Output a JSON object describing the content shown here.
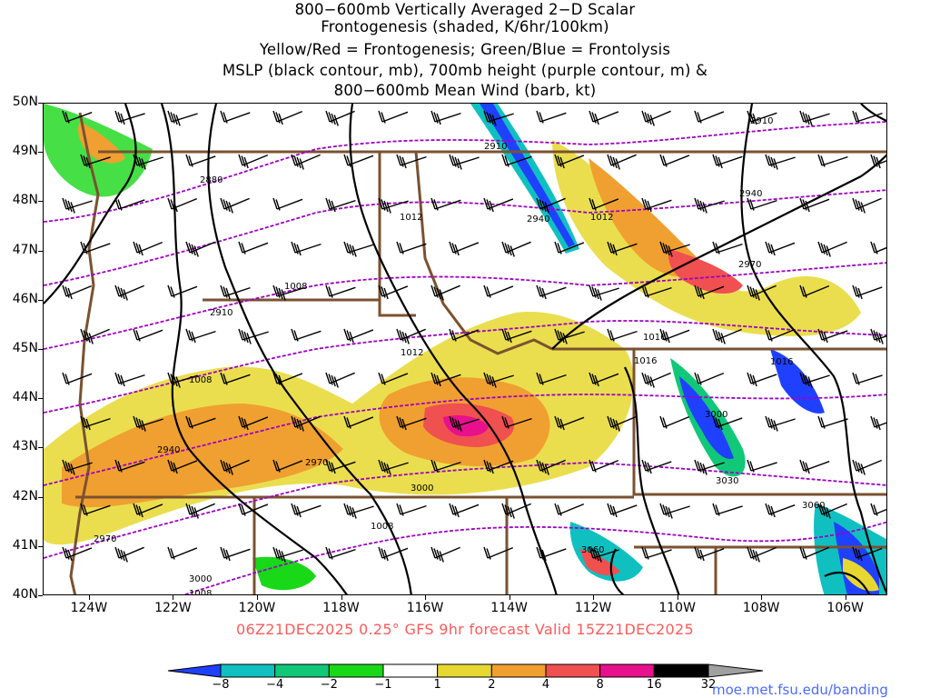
{
  "header": {
    "lines": [
      "800−600mb Vertically Averaged 2−D Scalar",
      "Frontogenesis (shaded, K/6hr/100km)",
      "Yellow/Red = Frontogenesis;  Green/Blue = Frontolysis",
      "MSLP (black contour, mb), 700mb height (purple contour, m) &",
      "800−600mb Mean Wind (barb, kt)"
    ]
  },
  "map": {
    "lat_labels": [
      "50N",
      "49N",
      "48N",
      "47N",
      "46N",
      "45N",
      "44N",
      "43N",
      "42N",
      "41N",
      "40N"
    ],
    "lon_labels": [
      "124W",
      "122W",
      "120W",
      "118W",
      "116W",
      "114W",
      "112W",
      "110W",
      "108W",
      "106W"
    ],
    "extent": {
      "lon_min": -125.1,
      "lon_max": -105.0,
      "lat_min": 40,
      "lat_max": 50
    },
    "mslp_labels": [
      "1012",
      "1012",
      "1008",
      "1012",
      "1016",
      "1016",
      "1016",
      "1008",
      "1008",
      "1008"
    ],
    "height_labels": [
      "2910",
      "2880",
      "2910",
      "2940",
      "2940",
      "2970",
      "2970",
      "2940",
      "3000",
      "3030",
      "3060",
      "3000",
      "2970",
      "3000",
      "3060",
      "2910"
    ],
    "colors": {
      "mslp": "#000000",
      "height": "#a000c8",
      "borders": "#7a5230",
      "barbs": "#000000"
    }
  },
  "footer": {
    "valid": "06Z21DEC2025 0.25° GFS 9hr forecast Valid 15Z21DEC2025",
    "credit": "moe.met.fsu.edu/banding"
  },
  "colorbar": {
    "labels": [
      "−8",
      "−4",
      "−2",
      "−1",
      "1",
      "2",
      "4",
      "8",
      "16",
      "32"
    ],
    "colors": [
      "#2040ff",
      "#10c0c0",
      "#10c878",
      "#18d818",
      "#ffffff",
      "#e6d830",
      "#f0a030",
      "#f05050",
      "#e8108c",
      "#000000",
      "#a0a0a0"
    ]
  }
}
